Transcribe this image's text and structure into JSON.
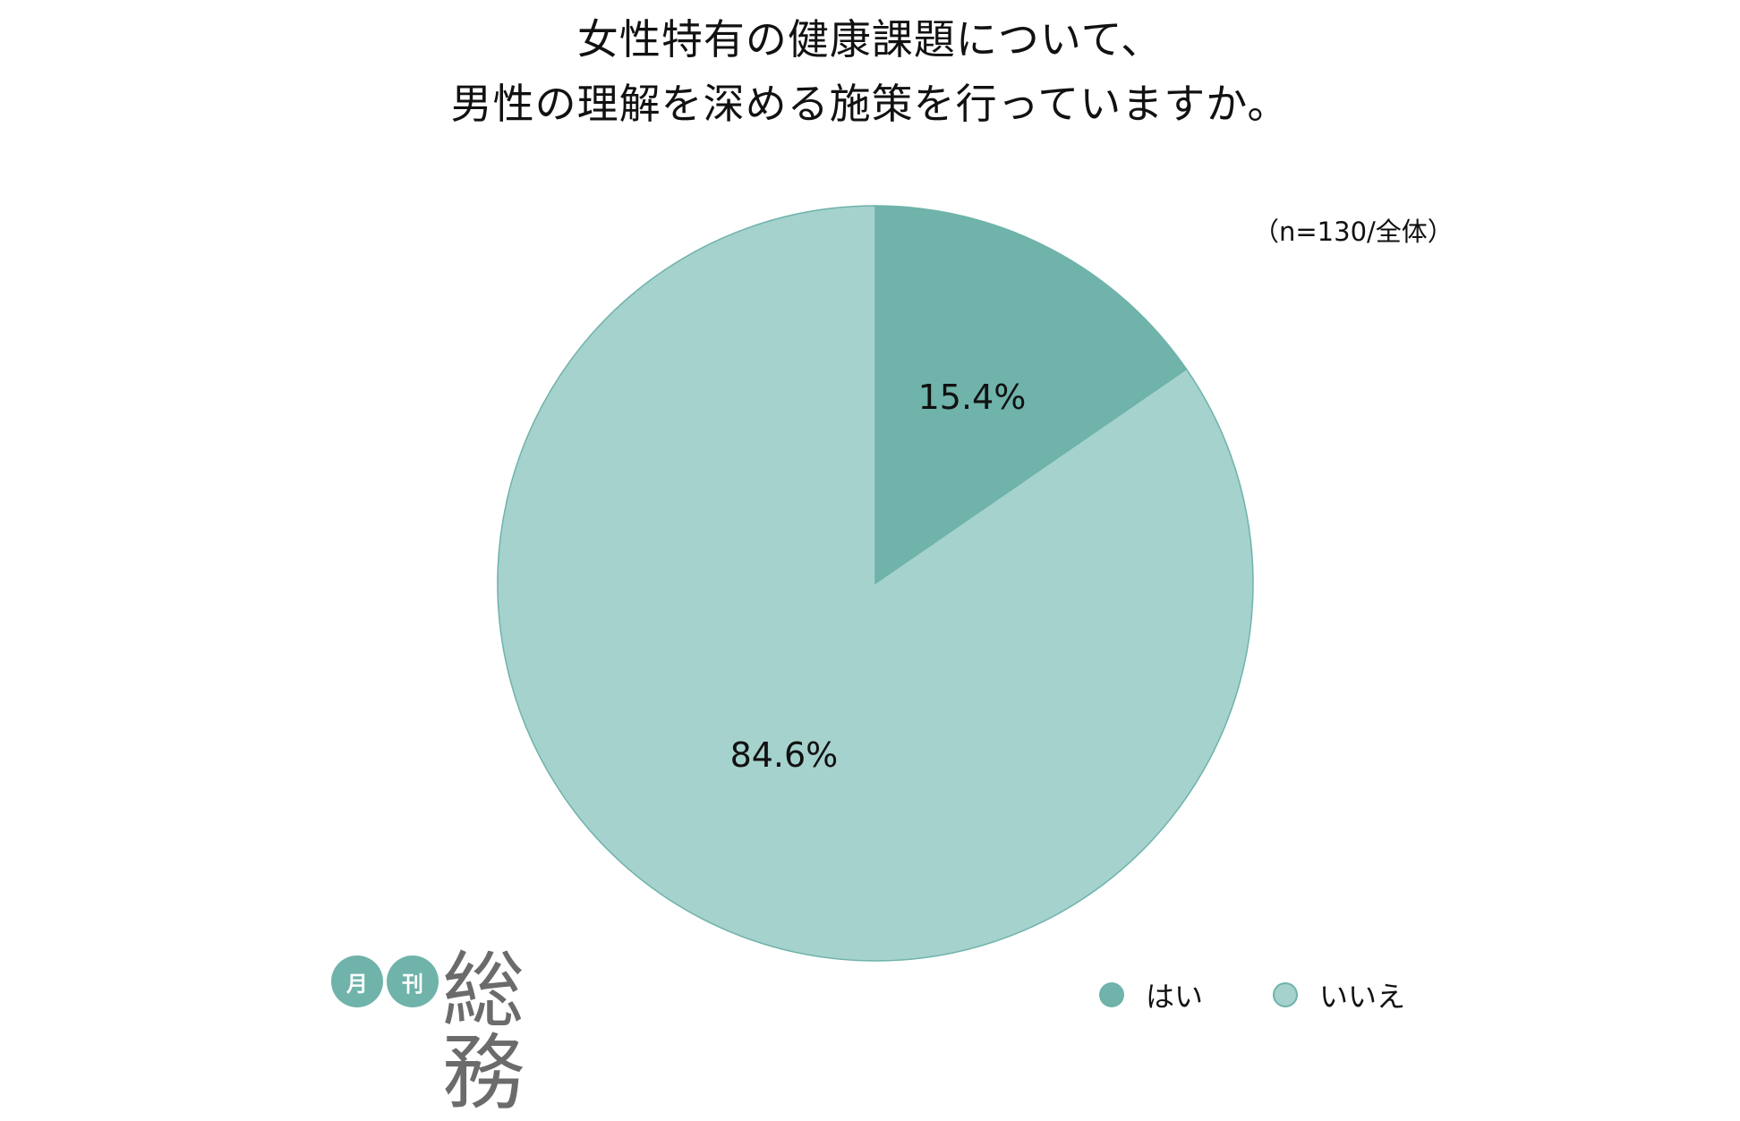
{
  "chart_data": {
    "type": "pie",
    "title_lines": [
      "女性特有の健康課題について、",
      "男性の理解を深める施策を行っていますか。"
    ],
    "note": "（n=130/全体）",
    "slices": [
      {
        "label": "はい",
        "value": 15.4,
        "display": "15.4%",
        "color": "#6fb3aa"
      },
      {
        "label": "いいえ",
        "value": 84.6,
        "display": "84.6%",
        "color": "#a5d2cd"
      }
    ],
    "start_angle_deg": 0,
    "direction": "clockwise",
    "legend_position": "bottom-right",
    "edge_color": "#6fb3aa"
  },
  "logo": {
    "circle1": "月",
    "circle2": "刊",
    "word": "総務",
    "circle_color": "#6fb3aa"
  }
}
